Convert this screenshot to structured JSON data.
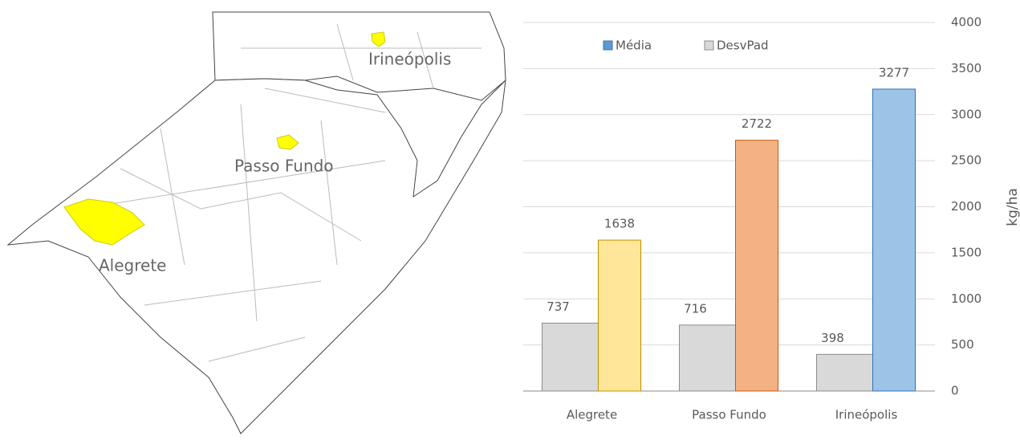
{
  "map": {
    "labels": [
      "Irineópolis",
      "Passo Fundo",
      "Alegrete"
    ]
  },
  "chart_data": {
    "type": "bar",
    "categories": [
      "Alegrete",
      "Passo Fundo",
      "Irineópolis"
    ],
    "series": [
      {
        "name": "DesvPad",
        "color": "#d9d9d9",
        "edge_color": "#8c8c8c",
        "values": [
          737,
          716,
          398
        ]
      },
      {
        "name": "Média",
        "color": "#5b9bd5",
        "colors": [
          "#ffe699",
          "#f4b183",
          "#9dc3e6"
        ],
        "edge_colors": [
          "#bf9000",
          "#c55a11",
          "#2e75b6"
        ],
        "values": [
          1638,
          2722,
          3277
        ]
      }
    ],
    "y_label": "kg/ha",
    "ylim": [
      0,
      4000
    ],
    "yticks": [
      0,
      500,
      1000,
      1500,
      2000,
      2500,
      3000,
      3500,
      4000
    ],
    "grid": true,
    "y_axis_side": "right",
    "legend": "top"
  }
}
